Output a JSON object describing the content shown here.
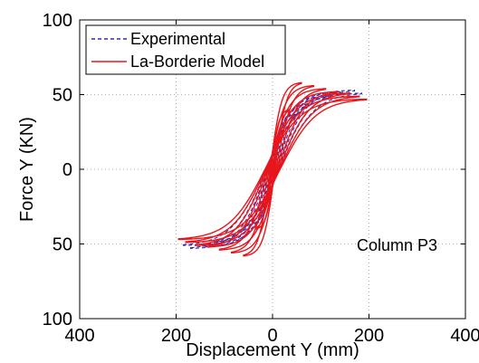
{
  "chart_data": {
    "type": "line",
    "xlabel": "Displacement Y (mm)",
    "ylabel": "Force Y (KN)",
    "xlim": [
      -400,
      400
    ],
    "ylim": [
      -100,
      100
    ],
    "x_ticks": [
      -400,
      -200,
      0,
      200,
      400
    ],
    "x_tick_labels": [
      "400",
      "200",
      "0",
      "200",
      "400"
    ],
    "y_ticks": [
      100,
      50,
      0,
      -50,
      -100
    ],
    "y_tick_labels": [
      "100",
      "50",
      "0",
      "50",
      "100"
    ],
    "grid": true,
    "grid_style": "dotted",
    "legend_position": "top-left",
    "annotation": "Column P3",
    "series": [
      {
        "name": "Experimental",
        "color": "#2b2bb8",
        "style": "dashed",
        "cycles": [
          {
            "amp": 30,
            "fmax": 28
          },
          {
            "amp": 55,
            "fmax": 37
          },
          {
            "amp": 85,
            "fmax": 44
          },
          {
            "amp": 115,
            "fmax": 49
          },
          {
            "amp": 145,
            "fmax": 52
          },
          {
            "amp": 170,
            "fmax": 53
          },
          {
            "amp": 185,
            "fmax": 51
          }
        ]
      },
      {
        "name": "La-Borderie Model",
        "color": "#e8161b",
        "style": "solid",
        "cycles": [
          {
            "amp": 15,
            "fmax": 22
          },
          {
            "amp": 35,
            "fmax": 40
          },
          {
            "amp": 60,
            "fmax": 58
          },
          {
            "amp": 85,
            "fmax": 56
          },
          {
            "amp": 110,
            "fmax": 54
          },
          {
            "amp": 135,
            "fmax": 52
          },
          {
            "amp": 160,
            "fmax": 51
          },
          {
            "amp": 180,
            "fmax": 49
          },
          {
            "amp": 195,
            "fmax": 47
          }
        ]
      }
    ]
  }
}
